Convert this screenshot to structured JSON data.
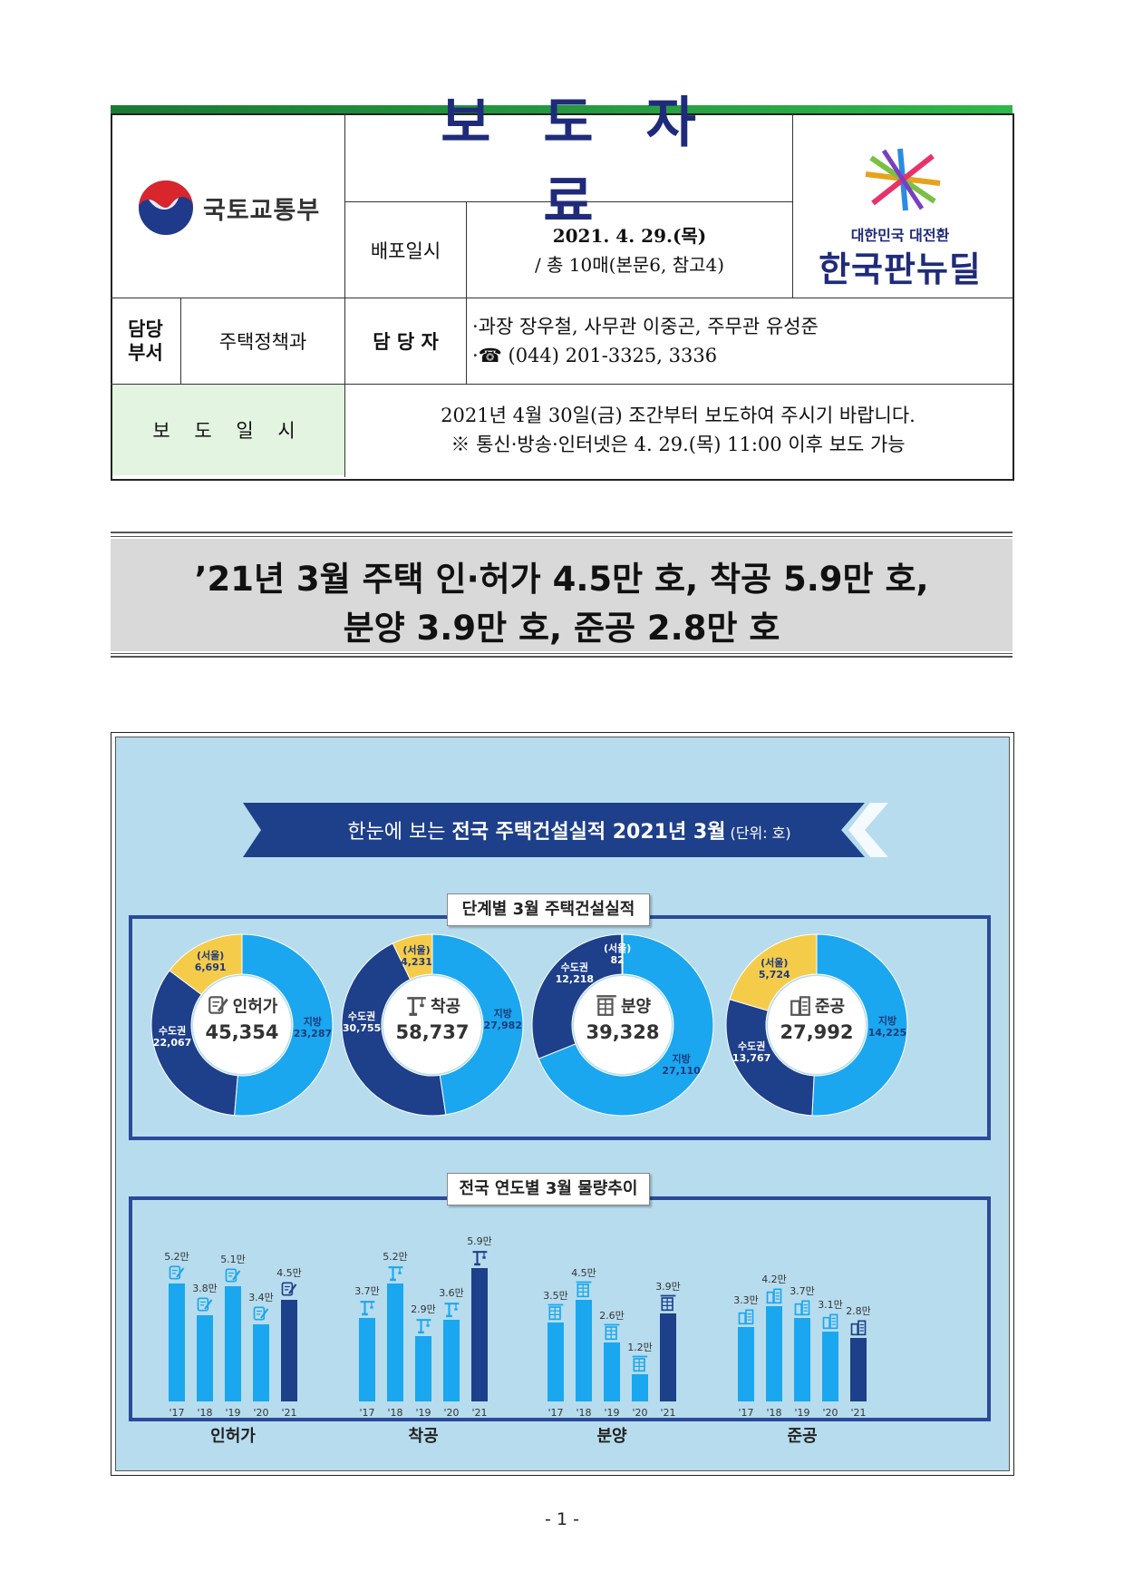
{
  "header": {
    "ministry": "국토교통부",
    "doc_type": "보도자료",
    "release_label": "배포일시",
    "release_date": "2021. 4. 29.(목)",
    "release_pages": "/ 총 10매(본문6, 참고4)",
    "brand_sub": "대한민국 대전환",
    "brand_main": "한국판뉴딜",
    "dept_label": "담당\n부서",
    "dept": "주택정책과",
    "contact_label": "담 당 자",
    "contact_people": "·과장 장우철, 사무관 이중곤, 주무관 유성준",
    "contact_phone": "·☎ (044) 201-3325, 3336",
    "embargo_label": "보 도 일 시",
    "embargo_line1": "2021년 4월 30일(금) 조간부터 보도하여 주시기 바랍니다.",
    "embargo_line2": "※ 통신·방송·인터넷은 4. 29.(목) 11:00 이후 보도 가능"
  },
  "headline": {
    "line1": "’21년 3월 주택 인·허가 4.5만 호, 착공 5.9만 호,",
    "line2": "분양 3.9만 호, 준공 2.8만 호"
  },
  "infographic": {
    "ribbon_pre": "한눈에 보는 ",
    "ribbon_bold": "전국 주택건설실적 2021년 3월",
    "ribbon_unit": " (단위: 호)",
    "section1_title": "단계별 3월 주택건설실적",
    "section2_title": "전국 연도별 3월 물량추이",
    "colors": {
      "local": "#1aa7ef",
      "capital": "#1e3f8a",
      "seoul": "#f5cc4a",
      "bar_light": "#1aa7ef",
      "bar_dark": "#1e3f8a",
      "bg": "#b7dcee"
    }
  },
  "chart_data": [
    {
      "type": "pie",
      "center_label": "인허가",
      "total": "45,354",
      "icon": "document-pen-icon",
      "segments": [
        {
          "name": "지방",
          "value": 23287,
          "label": "23,287"
        },
        {
          "name": "수도권",
          "value": 22067,
          "label": "22,067"
        }
      ],
      "sub_segment": {
        "name": "(서울)",
        "value": 6691,
        "label": "6,691"
      }
    },
    {
      "type": "pie",
      "center_label": "착공",
      "total": "58,737",
      "icon": "crane-icon",
      "segments": [
        {
          "name": "지방",
          "value": 27982,
          "label": "27,982"
        },
        {
          "name": "수도권",
          "value": 30755,
          "label": "30,755"
        }
      ],
      "sub_segment": {
        "name": "(서울)",
        "value": 4231,
        "label": "4,231"
      }
    },
    {
      "type": "pie",
      "center_label": "분양",
      "total": "39,328",
      "icon": "building-frame-icon",
      "segments": [
        {
          "name": "지방",
          "value": 27110,
          "label": "27,110"
        },
        {
          "name": "수도권",
          "value": 12218,
          "label": "12,218"
        }
      ],
      "sub_segment": {
        "name": "(서울)",
        "value": 82,
        "label": "82"
      }
    },
    {
      "type": "pie",
      "center_label": "준공",
      "total": "27,992",
      "icon": "buildings-icon",
      "segments": [
        {
          "name": "지방",
          "value": 14225,
          "label": "14,225"
        },
        {
          "name": "수도권",
          "value": 13767,
          "label": "13,767"
        }
      ],
      "sub_segment": {
        "name": "(서울)",
        "value": 5724,
        "label": "5,724"
      }
    },
    {
      "type": "bar",
      "name": "인허가",
      "icon": "document-pen-icon",
      "categories": [
        "'17",
        "'18",
        "'19",
        "'20",
        "'21"
      ],
      "values": [
        5.2,
        3.8,
        5.1,
        3.4,
        4.5
      ],
      "labels": [
        "5.2만",
        "3.8만",
        "5.1만",
        "3.4만",
        "4.5만"
      ]
    },
    {
      "type": "bar",
      "name": "착공",
      "icon": "crane-icon",
      "categories": [
        "'17",
        "'18",
        "'19",
        "'20",
        "'21"
      ],
      "values": [
        3.7,
        5.2,
        2.9,
        3.6,
        5.9
      ],
      "labels": [
        "3.7만",
        "5.2만",
        "2.9만",
        "3.6만",
        "5.9만"
      ]
    },
    {
      "type": "bar",
      "name": "분양",
      "icon": "building-frame-icon",
      "categories": [
        "'17",
        "'18",
        "'19",
        "'20",
        "'21"
      ],
      "values": [
        3.5,
        4.5,
        2.6,
        1.2,
        3.9
      ],
      "labels": [
        "3.5만",
        "4.5만",
        "2.6만",
        "1.2만",
        "3.9만"
      ]
    },
    {
      "type": "bar",
      "name": "준공",
      "icon": "buildings-icon",
      "categories": [
        "'17",
        "'18",
        "'19",
        "'20",
        "'21"
      ],
      "values": [
        3.3,
        4.2,
        3.7,
        3.1,
        2.8
      ],
      "labels": [
        "3.3만",
        "4.2만",
        "3.7만",
        "3.1만",
        "2.8만"
      ]
    }
  ],
  "footer": {
    "page": "- 1 -"
  }
}
